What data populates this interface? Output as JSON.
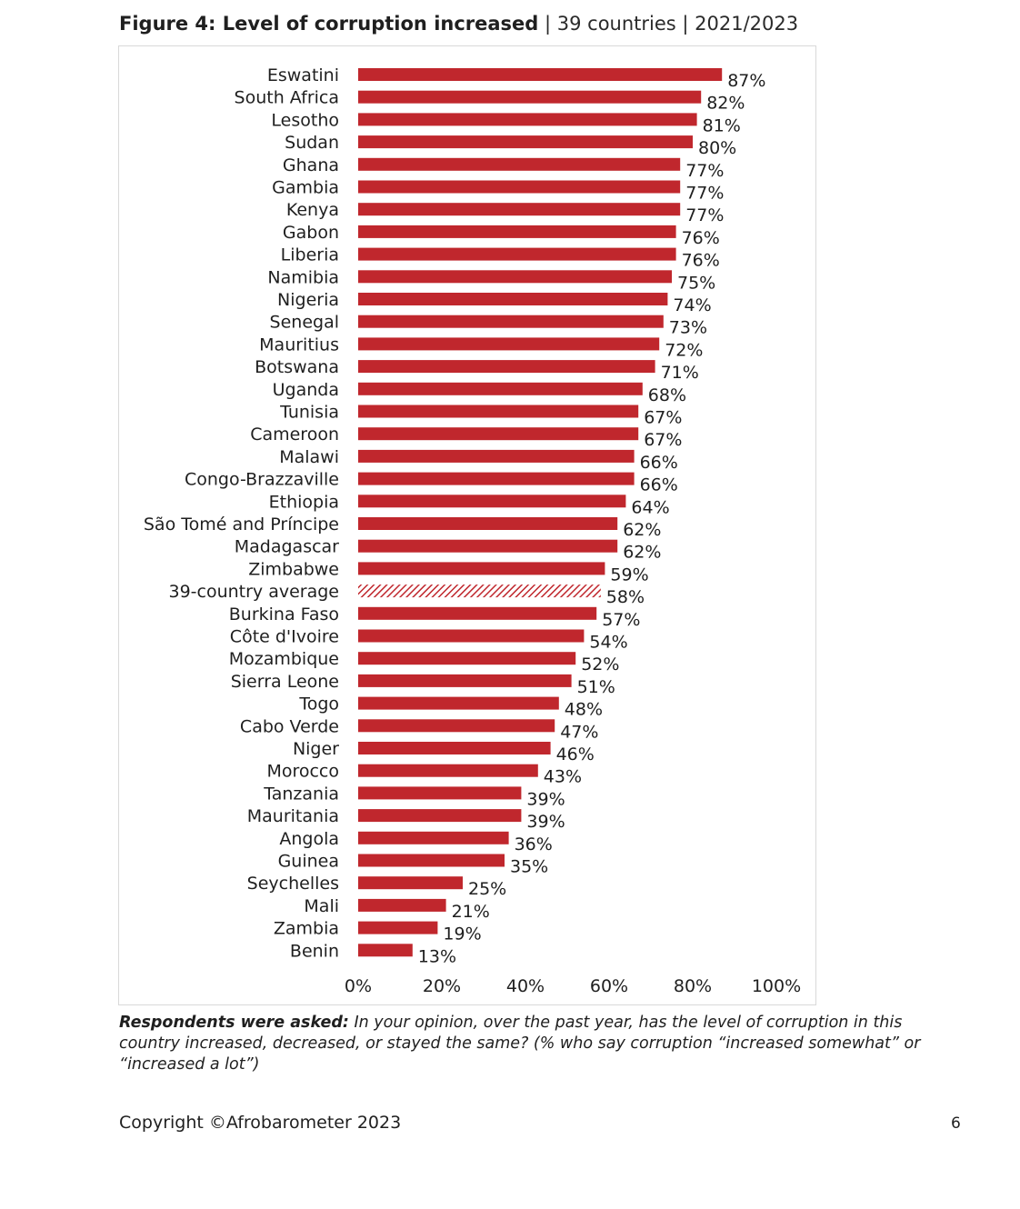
{
  "header": {
    "title_bold": "Figure 4: Level of corruption increased",
    "title_rest": " | 39 countries | 2021/2023"
  },
  "chart_data": {
    "type": "bar",
    "orientation": "horizontal",
    "categories": [
      "Eswatini",
      "South Africa",
      "Lesotho",
      "Sudan",
      "Ghana",
      "Gambia",
      "Kenya",
      "Gabon",
      "Liberia",
      "Namibia",
      "Nigeria",
      "Senegal",
      "Mauritius",
      "Botswana",
      "Uganda",
      "Tunisia",
      "Cameroon",
      "Malawi",
      "Congo-Brazzaville",
      "Ethiopia",
      "São Tomé and Príncipe",
      "Madagascar",
      "Zimbabwe",
      "39-country average",
      "Burkina Faso",
      "Côte d'Ivoire",
      "Mozambique",
      "Sierra Leone",
      "Togo",
      "Cabo Verde",
      "Niger",
      "Morocco",
      "Tanzania",
      "Mauritania",
      "Angola",
      "Guinea",
      "Seychelles",
      "Mali",
      "Zambia",
      "Benin"
    ],
    "values": [
      87,
      82,
      81,
      80,
      77,
      77,
      77,
      76,
      76,
      75,
      74,
      73,
      72,
      71,
      68,
      67,
      67,
      66,
      66,
      64,
      62,
      62,
      59,
      58,
      57,
      54,
      52,
      51,
      48,
      47,
      46,
      43,
      39,
      39,
      36,
      35,
      25,
      21,
      19,
      13
    ],
    "value_labels": [
      "87%",
      "82%",
      "81%",
      "80%",
      "77%",
      "77%",
      "77%",
      "76%",
      "76%",
      "75%",
      "74%",
      "73%",
      "72%",
      "71%",
      "68%",
      "67%",
      "67%",
      "66%",
      "66%",
      "64%",
      "62%",
      "62%",
      "59%",
      "58%",
      "57%",
      "54%",
      "52%",
      "51%",
      "48%",
      "47%",
      "46%",
      "43%",
      "39%",
      "39%",
      "36%",
      "35%",
      "25%",
      "21%",
      "19%",
      "13%"
    ],
    "highlight_category": "39-country average",
    "xlim": [
      0,
      100
    ],
    "xticks": [
      "0%",
      "20%",
      "40%",
      "60%",
      "80%",
      "100%"
    ],
    "grid": false,
    "colors": {
      "bar": "#c0272d",
      "average_hatch": "#c0272d"
    }
  },
  "note": {
    "lead": "Respondents were asked:",
    "text": " In your opinion, over the past year, has the level of corruption in this country increased, decreased, or stayed the same? (% who say corruption “increased somewhat” or “increased a lot”)"
  },
  "footer": {
    "copyright": "Copyright ©Afrobarometer 2023",
    "page_number": "6"
  }
}
